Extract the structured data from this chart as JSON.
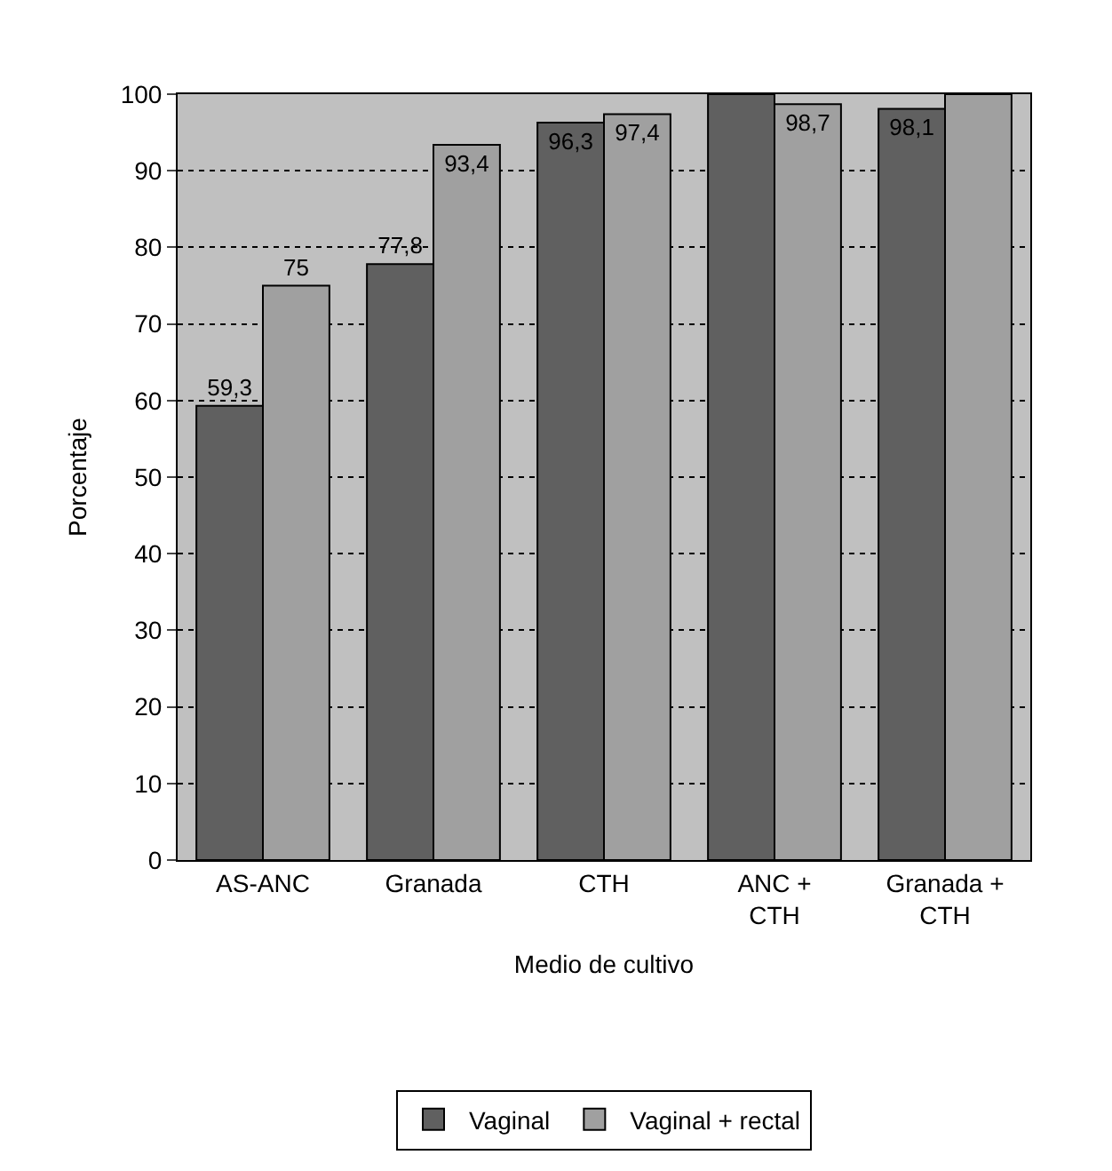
{
  "chart_data": {
    "type": "bar",
    "xlabel": "Medio de cultivo",
    "ylabel": "Porcentaje",
    "categories": [
      "AS-ANC",
      "Granada",
      "CTH",
      "ANC +\nCTH",
      "Granada +\nCTH"
    ],
    "series": [
      {
        "name": "Vaginal",
        "color": "#606060",
        "values": [
          59.3,
          77.8,
          96.3,
          100,
          98.1
        ],
        "value_labels": [
          "59,3",
          "77,8",
          "96,3",
          null,
          "98,1"
        ]
      },
      {
        "name": "Vaginal + rectal",
        "color": "#a0a0a0",
        "values": [
          75,
          93.4,
          97.4,
          98.7,
          100
        ],
        "value_labels": [
          "75",
          "93,4",
          "97,4",
          "98,7",
          null
        ]
      }
    ],
    "ylim": [
      0,
      100
    ],
    "yticks": [
      0,
      10,
      20,
      30,
      40,
      50,
      60,
      70,
      80,
      90,
      100
    ],
    "grid": "y",
    "legend": "bottom"
  }
}
